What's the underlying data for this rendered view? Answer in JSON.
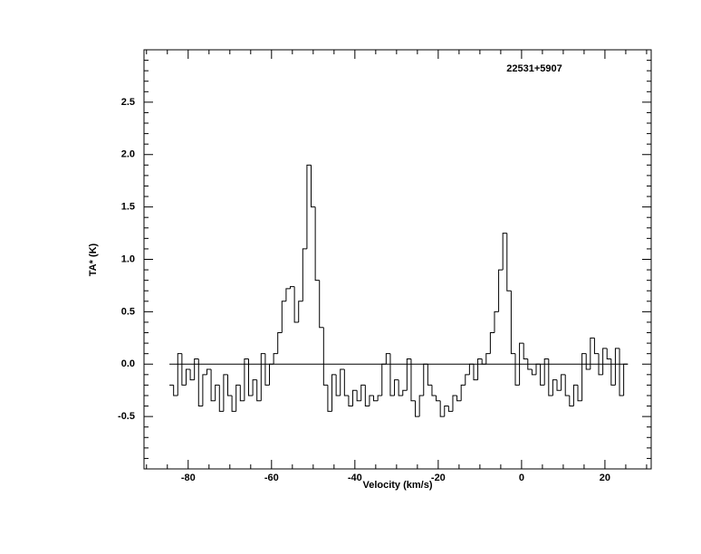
{
  "chart_data": {
    "type": "step",
    "title": "22531+5907",
    "xlabel": "Velocity (km/s)",
    "ylabel": "TA* (K)",
    "x": [
      -84,
      -83,
      -82,
      -81,
      -80,
      -79,
      -78,
      -77,
      -76,
      -75,
      -74,
      -73,
      -72,
      -71,
      -70,
      -69,
      -68,
      -67,
      -66,
      -65,
      -64,
      -63,
      -62,
      -61,
      -60,
      -59,
      -58,
      -57,
      -56,
      -55,
      -54,
      -53,
      -52,
      -51,
      -50,
      -49,
      -48,
      -47,
      -46,
      -45,
      -44,
      -43,
      -42,
      -41,
      -40,
      -39,
      -38,
      -37,
      -36,
      -35,
      -34,
      -33,
      -32,
      -31,
      -30,
      -29,
      -28,
      -27,
      -26,
      -25,
      -24,
      -23,
      -22,
      -21,
      -20,
      -19,
      -18,
      -17,
      -16,
      -15,
      -14,
      -13,
      -12,
      -11,
      -10,
      -9,
      -8,
      -7,
      -6,
      -5,
      -4,
      -3,
      -2,
      -1,
      0,
      1,
      2,
      3,
      4,
      5,
      6,
      7,
      8,
      9,
      10,
      11,
      12,
      13,
      14,
      15,
      16,
      17,
      18,
      19,
      20,
      21,
      22,
      23,
      24,
      25
    ],
    "values": [
      -0.2,
      -0.3,
      0.1,
      -0.2,
      -0.05,
      -0.15,
      0.05,
      -0.4,
      -0.1,
      -0.05,
      -0.35,
      -0.2,
      -0.45,
      -0.1,
      -0.3,
      -0.45,
      -0.2,
      -0.35,
      0.05,
      -0.3,
      -0.15,
      -0.35,
      0.1,
      -0.2,
      0.0,
      0.1,
      0.3,
      0.6,
      0.72,
      0.74,
      0.4,
      0.6,
      1.1,
      1.9,
      1.5,
      0.8,
      0.35,
      -0.2,
      -0.45,
      -0.1,
      -0.3,
      -0.05,
      -0.3,
      -0.4,
      -0.25,
      -0.35,
      -0.2,
      -0.4,
      -0.3,
      -0.35,
      -0.3,
      0.0,
      0.1,
      -0.3,
      -0.15,
      -0.3,
      -0.25,
      0.05,
      -0.35,
      -0.5,
      -0.3,
      0.0,
      -0.2,
      -0.3,
      -0.35,
      -0.5,
      -0.4,
      -0.45,
      -0.3,
      -0.35,
      -0.2,
      -0.1,
      0.0,
      -0.15,
      0.05,
      0.0,
      0.1,
      0.3,
      0.5,
      0.9,
      1.25,
      0.7,
      0.1,
      -0.2,
      0.2,
      0.05,
      -0.05,
      -0.1,
      0.0,
      -0.2,
      0.05,
      -0.3,
      -0.15,
      -0.25,
      -0.1,
      -0.3,
      -0.4,
      -0.2,
      -0.35,
      0.1,
      -0.05,
      0.25,
      0.1,
      -0.1,
      0.15,
      0.05,
      -0.2,
      0.15,
      -0.3,
      0.0
    ],
    "color": "#000000",
    "xlim": [
      -90.6,
      31.1
    ],
    "ylim": [
      -1.0,
      3.0
    ],
    "xticks": [
      -80,
      -60,
      -40,
      -20,
      0,
      20
    ],
    "yticks": [
      {
        "value": -0.5,
        "label": "-0.5"
      },
      {
        "value": 0,
        "label": "0.0"
      },
      {
        "value": 0.5,
        "label": "0.5"
      },
      {
        "value": 1,
        "label": "1.0"
      },
      {
        "value": 1.5,
        "label": "1.5"
      },
      {
        "value": 2,
        "label": "2.0"
      },
      {
        "value": 2.5,
        "label": "2.5"
      }
    ],
    "xminorticks": [
      -90,
      -85,
      -75,
      -70,
      -65,
      -55,
      -50,
      -45,
      -35,
      -30,
      -25,
      -15,
      -10,
      -5,
      5,
      10,
      15,
      25,
      30
    ],
    "yminorticks": [
      -0.9,
      -0.8,
      -0.7,
      -0.6,
      -0.4,
      -0.3,
      -0.2,
      -0.1,
      0.1,
      0.2,
      0.3,
      0.4,
      0.6,
      0.7,
      0.8,
      0.9,
      1.1,
      1.2,
      1.3,
      1.4,
      1.6,
      1.7,
      1.8,
      1.9,
      2.1,
      2.2,
      2.3,
      2.4,
      2.6,
      2.7,
      2.8,
      2.9
    ],
    "zero_line": true
  }
}
